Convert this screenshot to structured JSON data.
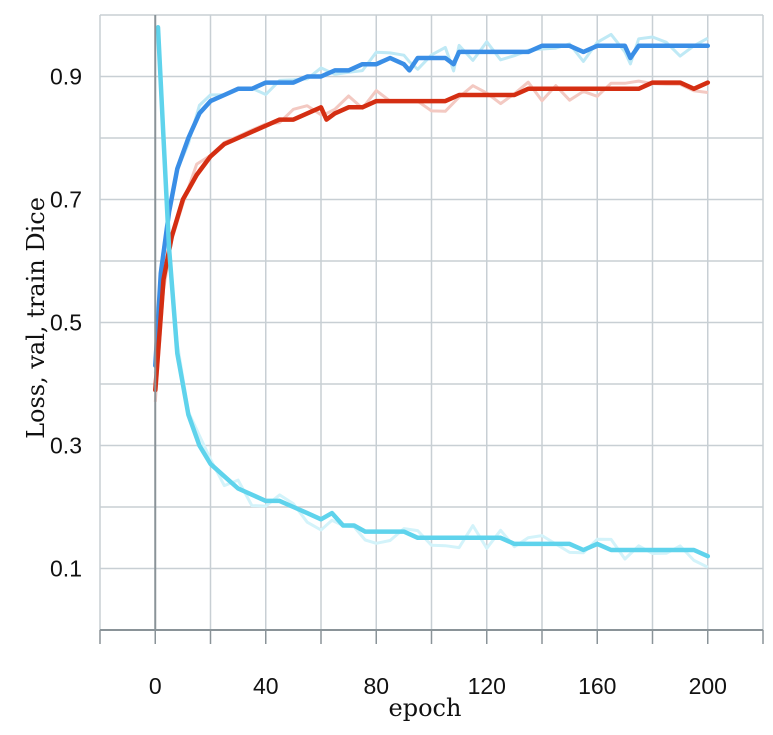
{
  "chart_data": {
    "type": "line",
    "xlabel": "epoch",
    "ylabel": "Loss, val, train Dice",
    "xlim": [
      -20,
      220
    ],
    "ylim": [
      0.0,
      1.0
    ],
    "x_ticks": [
      "0",
      "40",
      "80",
      "120",
      "160",
      "200"
    ],
    "y_ticks": [
      "0.1",
      "0.3",
      "0.5",
      "0.7",
      "0.9"
    ],
    "grid": true,
    "colors": {
      "val_dice": "#3a8ee6",
      "train_dice": "#d42e12",
      "loss": "#5fd3ec",
      "raw_val": "#bfe9f5",
      "raw_train": "#f3c9c2",
      "raw_loss": "#d3f3fa",
      "grid": "#c8cfd4",
      "axis": "#8a9398"
    },
    "series": [
      {
        "key": "val_dice",
        "x": [
          0,
          2,
          5,
          8,
          12,
          16,
          20,
          25,
          30,
          35,
          40,
          45,
          50,
          55,
          60,
          65,
          70,
          75,
          80,
          85,
          90,
          92,
          95,
          100,
          105,
          108,
          110,
          115,
          120,
          125,
          130,
          135,
          140,
          145,
          150,
          155,
          160,
          165,
          170,
          172,
          175,
          180,
          185,
          190,
          195,
          200
        ],
        "y": [
          0.43,
          0.58,
          0.68,
          0.75,
          0.8,
          0.84,
          0.86,
          0.87,
          0.88,
          0.88,
          0.89,
          0.89,
          0.89,
          0.9,
          0.9,
          0.91,
          0.91,
          0.92,
          0.92,
          0.93,
          0.92,
          0.91,
          0.93,
          0.93,
          0.93,
          0.92,
          0.94,
          0.94,
          0.94,
          0.94,
          0.94,
          0.94,
          0.95,
          0.95,
          0.95,
          0.94,
          0.95,
          0.95,
          0.95,
          0.93,
          0.95,
          0.95,
          0.95,
          0.95,
          0.95,
          0.95
        ]
      },
      {
        "key": "train_dice",
        "x": [
          0,
          3,
          6,
          10,
          15,
          20,
          25,
          30,
          35,
          40,
          45,
          50,
          55,
          60,
          62,
          65,
          70,
          75,
          80,
          85,
          90,
          95,
          100,
          105,
          110,
          115,
          120,
          125,
          130,
          135,
          140,
          145,
          150,
          155,
          160,
          165,
          170,
          175,
          180,
          185,
          190,
          195,
          200
        ],
        "y": [
          0.39,
          0.57,
          0.64,
          0.7,
          0.74,
          0.77,
          0.79,
          0.8,
          0.81,
          0.82,
          0.83,
          0.83,
          0.84,
          0.85,
          0.83,
          0.84,
          0.85,
          0.85,
          0.86,
          0.86,
          0.86,
          0.86,
          0.86,
          0.86,
          0.87,
          0.87,
          0.87,
          0.87,
          0.87,
          0.88,
          0.88,
          0.88,
          0.88,
          0.88,
          0.88,
          0.88,
          0.88,
          0.88,
          0.89,
          0.89,
          0.89,
          0.88,
          0.89
        ]
      },
      {
        "key": "loss",
        "x": [
          1,
          3,
          5,
          8,
          12,
          16,
          20,
          25,
          30,
          35,
          40,
          45,
          50,
          55,
          60,
          64,
          68,
          72,
          76,
          80,
          85,
          90,
          95,
          100,
          105,
          110,
          115,
          120,
          125,
          130,
          135,
          140,
          145,
          150,
          155,
          160,
          165,
          170,
          175,
          180,
          185,
          190,
          195,
          200
        ],
        "y": [
          0.98,
          0.8,
          0.62,
          0.45,
          0.35,
          0.3,
          0.27,
          0.25,
          0.23,
          0.22,
          0.21,
          0.21,
          0.2,
          0.19,
          0.18,
          0.19,
          0.17,
          0.17,
          0.16,
          0.16,
          0.16,
          0.16,
          0.15,
          0.15,
          0.15,
          0.15,
          0.15,
          0.15,
          0.15,
          0.14,
          0.14,
          0.14,
          0.14,
          0.14,
          0.13,
          0.14,
          0.13,
          0.13,
          0.13,
          0.13,
          0.13,
          0.13,
          0.13,
          0.12
        ]
      }
    ]
  }
}
